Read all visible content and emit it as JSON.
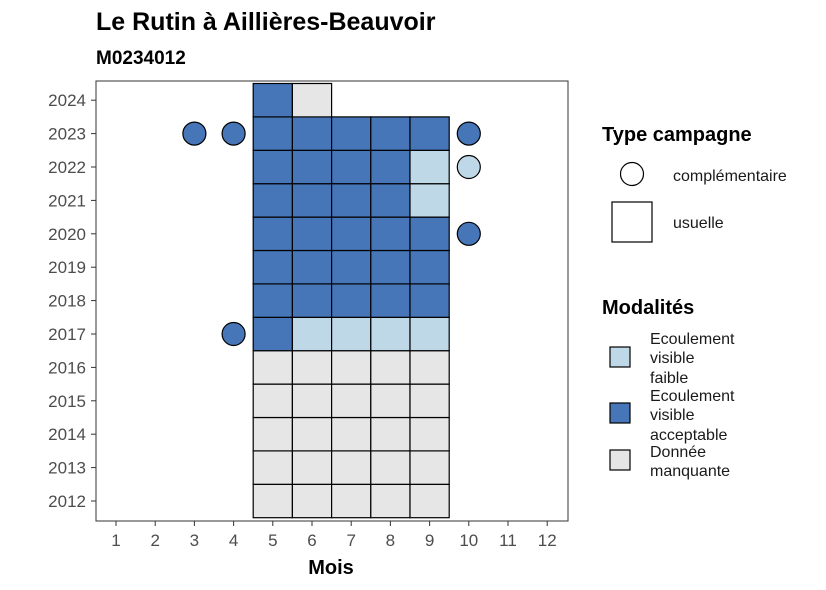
{
  "chart_data": {
    "type": "heatmap",
    "title": "Le Rutin à Aillières-Beauvoir",
    "subtitle": "M0234012",
    "xlabel": "Mois",
    "ylabel": "",
    "x_categories": [
      "1",
      "2",
      "3",
      "4",
      "5",
      "6",
      "7",
      "8",
      "9",
      "10",
      "11",
      "12"
    ],
    "y_categories": [
      "2012",
      "2013",
      "2014",
      "2015",
      "2016",
      "2017",
      "2018",
      "2019",
      "2020",
      "2021",
      "2022",
      "2023",
      "2024"
    ],
    "colors": {
      "Ecoulement visible faible": "#bed8e8",
      "Ecoulement visible acceptable": "#4776b8",
      "Donnée manquante": "#e6e6e6"
    },
    "legend_shape": {
      "title": "Type campagne",
      "entries": [
        {
          "label": "complémentaire",
          "shape": "circle"
        },
        {
          "label": "usuelle",
          "shape": "square"
        }
      ]
    },
    "legend_fill": {
      "title": "Modalités",
      "entries": [
        {
          "label": [
            "Ecoulement",
            "visible",
            "faible"
          ],
          "key": "Ecoulement visible faible"
        },
        {
          "label": [
            "Ecoulement",
            "visible",
            "acceptable"
          ],
          "key": "Ecoulement visible acceptable"
        },
        {
          "label": [
            "Donnée",
            "manquante"
          ],
          "key": "Donnée manquante"
        }
      ]
    },
    "cells": [
      {
        "year": "2012",
        "month": 5,
        "value": "Donnée manquante",
        "campaign": "usuelle"
      },
      {
        "year": "2012",
        "month": 6,
        "value": "Donnée manquante",
        "campaign": "usuelle"
      },
      {
        "year": "2012",
        "month": 7,
        "value": "Donnée manquante",
        "campaign": "usuelle"
      },
      {
        "year": "2012",
        "month": 8,
        "value": "Donnée manquante",
        "campaign": "usuelle"
      },
      {
        "year": "2012",
        "month": 9,
        "value": "Donnée manquante",
        "campaign": "usuelle"
      },
      {
        "year": "2013",
        "month": 5,
        "value": "Donnée manquante",
        "campaign": "usuelle"
      },
      {
        "year": "2013",
        "month": 6,
        "value": "Donnée manquante",
        "campaign": "usuelle"
      },
      {
        "year": "2013",
        "month": 7,
        "value": "Donnée manquante",
        "campaign": "usuelle"
      },
      {
        "year": "2013",
        "month": 8,
        "value": "Donnée manquante",
        "campaign": "usuelle"
      },
      {
        "year": "2013",
        "month": 9,
        "value": "Donnée manquante",
        "campaign": "usuelle"
      },
      {
        "year": "2014",
        "month": 5,
        "value": "Donnée manquante",
        "campaign": "usuelle"
      },
      {
        "year": "2014",
        "month": 6,
        "value": "Donnée manquante",
        "campaign": "usuelle"
      },
      {
        "year": "2014",
        "month": 7,
        "value": "Donnée manquante",
        "campaign": "usuelle"
      },
      {
        "year": "2014",
        "month": 8,
        "value": "Donnée manquante",
        "campaign": "usuelle"
      },
      {
        "year": "2014",
        "month": 9,
        "value": "Donnée manquante",
        "campaign": "usuelle"
      },
      {
        "year": "2015",
        "month": 5,
        "value": "Donnée manquante",
        "campaign": "usuelle"
      },
      {
        "year": "2015",
        "month": 6,
        "value": "Donnée manquante",
        "campaign": "usuelle"
      },
      {
        "year": "2015",
        "month": 7,
        "value": "Donnée manquante",
        "campaign": "usuelle"
      },
      {
        "year": "2015",
        "month": 8,
        "value": "Donnée manquante",
        "campaign": "usuelle"
      },
      {
        "year": "2015",
        "month": 9,
        "value": "Donnée manquante",
        "campaign": "usuelle"
      },
      {
        "year": "2016",
        "month": 5,
        "value": "Donnée manquante",
        "campaign": "usuelle"
      },
      {
        "year": "2016",
        "month": 6,
        "value": "Donnée manquante",
        "campaign": "usuelle"
      },
      {
        "year": "2016",
        "month": 7,
        "value": "Donnée manquante",
        "campaign": "usuelle"
      },
      {
        "year": "2016",
        "month": 8,
        "value": "Donnée manquante",
        "campaign": "usuelle"
      },
      {
        "year": "2016",
        "month": 9,
        "value": "Donnée manquante",
        "campaign": "usuelle"
      },
      {
        "year": "2017",
        "month": 4,
        "value": "Ecoulement visible acceptable",
        "campaign": "complémentaire"
      },
      {
        "year": "2017",
        "month": 5,
        "value": "Ecoulement visible acceptable",
        "campaign": "usuelle"
      },
      {
        "year": "2017",
        "month": 6,
        "value": "Ecoulement visible faible",
        "campaign": "usuelle"
      },
      {
        "year": "2017",
        "month": 7,
        "value": "Ecoulement visible faible",
        "campaign": "usuelle"
      },
      {
        "year": "2017",
        "month": 8,
        "value": "Ecoulement visible faible",
        "campaign": "usuelle"
      },
      {
        "year": "2017",
        "month": 9,
        "value": "Ecoulement visible faible",
        "campaign": "usuelle"
      },
      {
        "year": "2018",
        "month": 5,
        "value": "Ecoulement visible acceptable",
        "campaign": "usuelle"
      },
      {
        "year": "2018",
        "month": 6,
        "value": "Ecoulement visible acceptable",
        "campaign": "usuelle"
      },
      {
        "year": "2018",
        "month": 7,
        "value": "Ecoulement visible acceptable",
        "campaign": "usuelle"
      },
      {
        "year": "2018",
        "month": 8,
        "value": "Ecoulement visible acceptable",
        "campaign": "usuelle"
      },
      {
        "year": "2018",
        "month": 9,
        "value": "Ecoulement visible acceptable",
        "campaign": "usuelle"
      },
      {
        "year": "2019",
        "month": 5,
        "value": "Ecoulement visible acceptable",
        "campaign": "usuelle"
      },
      {
        "year": "2019",
        "month": 6,
        "value": "Ecoulement visible acceptable",
        "campaign": "usuelle"
      },
      {
        "year": "2019",
        "month": 7,
        "value": "Ecoulement visible acceptable",
        "campaign": "usuelle"
      },
      {
        "year": "2019",
        "month": 8,
        "value": "Ecoulement visible acceptable",
        "campaign": "usuelle"
      },
      {
        "year": "2019",
        "month": 9,
        "value": "Ecoulement visible acceptable",
        "campaign": "usuelle"
      },
      {
        "year": "2020",
        "month": 5,
        "value": "Ecoulement visible acceptable",
        "campaign": "usuelle"
      },
      {
        "year": "2020",
        "month": 6,
        "value": "Ecoulement visible acceptable",
        "campaign": "usuelle"
      },
      {
        "year": "2020",
        "month": 7,
        "value": "Ecoulement visible acceptable",
        "campaign": "usuelle"
      },
      {
        "year": "2020",
        "month": 8,
        "value": "Ecoulement visible acceptable",
        "campaign": "usuelle"
      },
      {
        "year": "2020",
        "month": 9,
        "value": "Ecoulement visible acceptable",
        "campaign": "usuelle"
      },
      {
        "year": "2020",
        "month": 10,
        "value": "Ecoulement visible acceptable",
        "campaign": "complémentaire"
      },
      {
        "year": "2021",
        "month": 5,
        "value": "Ecoulement visible acceptable",
        "campaign": "usuelle"
      },
      {
        "year": "2021",
        "month": 6,
        "value": "Ecoulement visible acceptable",
        "campaign": "usuelle"
      },
      {
        "year": "2021",
        "month": 7,
        "value": "Ecoulement visible acceptable",
        "campaign": "usuelle"
      },
      {
        "year": "2021",
        "month": 8,
        "value": "Ecoulement visible acceptable",
        "campaign": "usuelle"
      },
      {
        "year": "2021",
        "month": 9,
        "value": "Ecoulement visible faible",
        "campaign": "usuelle"
      },
      {
        "year": "2022",
        "month": 5,
        "value": "Ecoulement visible acceptable",
        "campaign": "usuelle"
      },
      {
        "year": "2022",
        "month": 6,
        "value": "Ecoulement visible acceptable",
        "campaign": "usuelle"
      },
      {
        "year": "2022",
        "month": 7,
        "value": "Ecoulement visible acceptable",
        "campaign": "usuelle"
      },
      {
        "year": "2022",
        "month": 8,
        "value": "Ecoulement visible acceptable",
        "campaign": "usuelle"
      },
      {
        "year": "2022",
        "month": 9,
        "value": "Ecoulement visible faible",
        "campaign": "usuelle"
      },
      {
        "year": "2022",
        "month": 10,
        "value": "Ecoulement visible faible",
        "campaign": "complémentaire"
      },
      {
        "year": "2023",
        "month": 3,
        "value": "Ecoulement visible acceptable",
        "campaign": "complémentaire"
      },
      {
        "year": "2023",
        "month": 4,
        "value": "Ecoulement visible acceptable",
        "campaign": "complémentaire"
      },
      {
        "year": "2023",
        "month": 5,
        "value": "Ecoulement visible acceptable",
        "campaign": "usuelle"
      },
      {
        "year": "2023",
        "month": 6,
        "value": "Ecoulement visible acceptable",
        "campaign": "usuelle"
      },
      {
        "year": "2023",
        "month": 7,
        "value": "Ecoulement visible acceptable",
        "campaign": "usuelle"
      },
      {
        "year": "2023",
        "month": 8,
        "value": "Ecoulement visible acceptable",
        "campaign": "usuelle"
      },
      {
        "year": "2023",
        "month": 9,
        "value": "Ecoulement visible acceptable",
        "campaign": "usuelle"
      },
      {
        "year": "2023",
        "month": 10,
        "value": "Ecoulement visible acceptable",
        "campaign": "complémentaire"
      },
      {
        "year": "2024",
        "month": 5,
        "value": "Ecoulement visible acceptable",
        "campaign": "usuelle"
      },
      {
        "year": "2024",
        "month": 6,
        "value": "Donnée manquante",
        "campaign": "usuelle"
      }
    ]
  }
}
